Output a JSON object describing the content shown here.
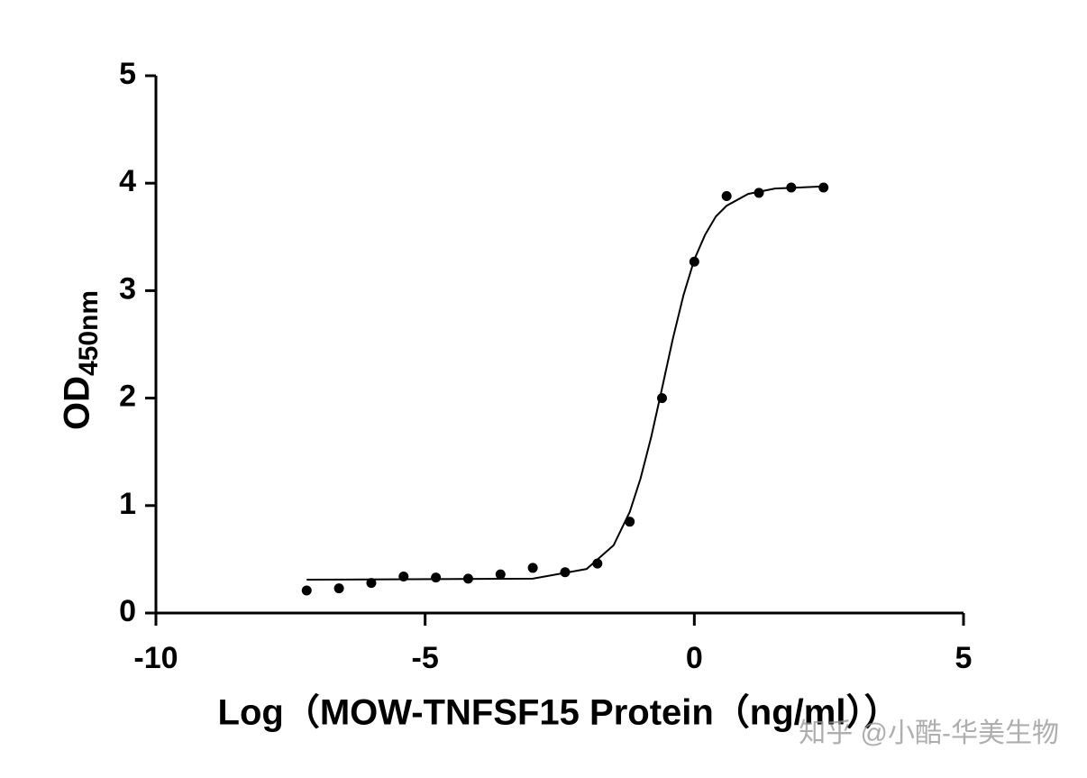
{
  "chart_data": {
    "type": "scatter",
    "xlabel": "Log（MOW-TNFSF15 Protein（ng/ml））",
    "ylabel": {
      "main": "OD",
      "sub": "450nm"
    },
    "watermark": "知乎 @小酷-华美生物",
    "xlim": [
      -10,
      5
    ],
    "xticks": [
      -10,
      -5,
      0,
      5
    ],
    "ylim": [
      0,
      5
    ],
    "yticks": [
      0,
      1,
      2,
      3,
      4,
      5
    ],
    "series": [
      {
        "style": "points",
        "color": "#000000",
        "x": [
          -7.2,
          -6.6,
          -6.0,
          -5.4,
          -4.8,
          -4.2,
          -3.6,
          -3.0,
          -2.4,
          -1.8,
          -1.2,
          -0.6,
          0,
          0.6,
          1.2,
          1.8,
          2.4
        ],
        "values": [
          0.21,
          0.23,
          0.28,
          0.34,
          0.33,
          0.32,
          0.36,
          0.42,
          0.38,
          0.46,
          0.85,
          2.0,
          3.27,
          3.88,
          3.91,
          3.96,
          3.96
        ]
      },
      {
        "style": "line",
        "color": "#000000",
        "x": [
          -7.2,
          -3,
          -2,
          -1.5,
          -1.2,
          -1,
          -0.8,
          -0.6,
          -0.4,
          -0.2,
          0,
          0.2,
          0.4,
          0.6,
          1,
          1.5,
          2.4
        ],
        "values": [
          0.31,
          0.32,
          0.41,
          0.63,
          0.94,
          1.25,
          1.64,
          2.09,
          2.55,
          2.96,
          3.29,
          3.52,
          3.69,
          3.79,
          3.9,
          3.95,
          3.97
        ]
      }
    ]
  }
}
